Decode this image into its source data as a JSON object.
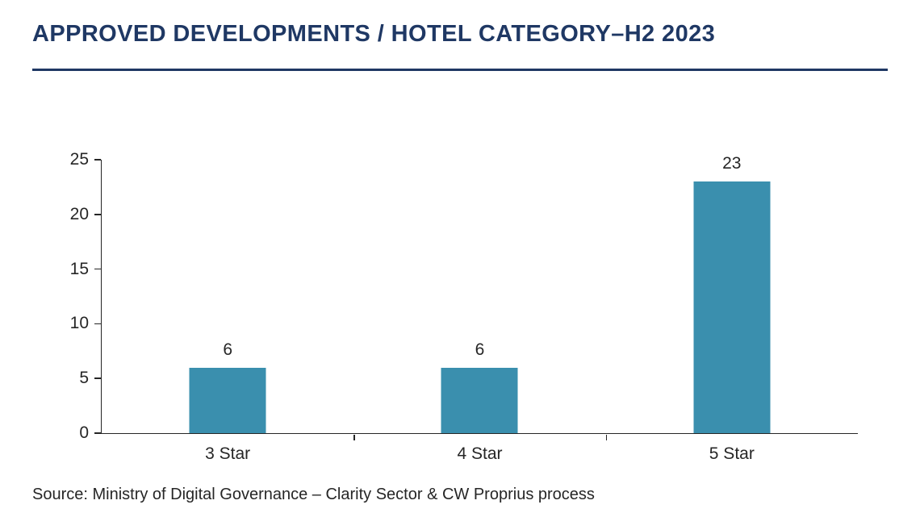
{
  "title": "APPROVED DEVELOPMENTS / HOTEL CATEGORY–H2 2023",
  "source": "Source: Ministry of Digital Governance – Clarity Sector & CW Proprius process",
  "colors": {
    "bar": "#3a8fae",
    "title": "#1f3864",
    "axis": "#262626"
  },
  "chart_data": {
    "type": "bar",
    "categories": [
      "3 Star",
      "4 Star",
      "5 Star"
    ],
    "values": [
      6,
      6,
      23
    ],
    "title": "APPROVED DEVELOPMENTS / HOTEL CATEGORY–H2 2023",
    "xlabel": "",
    "ylabel": "",
    "ylim": [
      0,
      25
    ],
    "yticks": [
      0,
      5,
      10,
      15,
      20,
      25
    ],
    "grid": false,
    "legend": false,
    "data_labels": true,
    "bar_color": "#3a8fae"
  }
}
